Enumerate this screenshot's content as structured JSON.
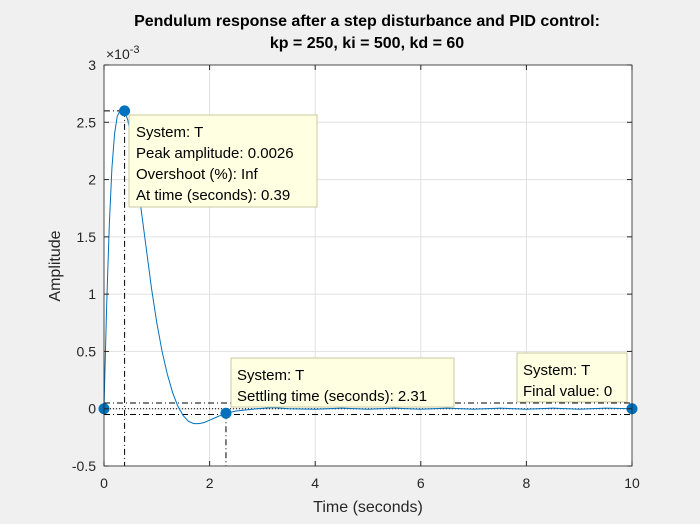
{
  "colors": {
    "figure_bg": "#f0f0f0",
    "axes_bg": "#ffffff",
    "line": "#0072bd",
    "grid": "#e0e0e0",
    "axis": "#262626",
    "tooltip_bg": "#ffffe1",
    "tooltip_border": "#c8c8a0"
  },
  "chart_data": {
    "type": "line",
    "title": "Pendulum response after a step disturbance and PID control:",
    "subtitle": "kp = 250, ki = 500, kd = 60",
    "xlabel": "Time (seconds)",
    "ylabel": "Amplitude",
    "exponent_label": "×10",
    "exponent_power": "-3",
    "xlim": [
      0,
      10
    ],
    "ylim": [
      -0.5,
      3
    ],
    "y_scale_note": "values in units of 1e-3",
    "x_ticks": [
      0,
      2,
      4,
      6,
      8,
      10
    ],
    "y_ticks": [
      -0.5,
      0,
      0.5,
      1,
      1.5,
      2,
      2.5,
      3
    ],
    "x_tick_labels": [
      "0",
      "2",
      "4",
      "6",
      "8",
      "10"
    ],
    "y_tick_labels": [
      "-0.5",
      "0",
      "0.5",
      "1",
      "1.5",
      "2",
      "2.5",
      "3"
    ],
    "grid": true,
    "series": [
      {
        "x": [
          0,
          0.05,
          0.1,
          0.15,
          0.2,
          0.25,
          0.3,
          0.35,
          0.39,
          0.45,
          0.5,
          0.6,
          0.7,
          0.8,
          0.9,
          1.0,
          1.1,
          1.2,
          1.3,
          1.4,
          1.5,
          1.6,
          1.7,
          1.8,
          1.9,
          2.0,
          2.1,
          2.2,
          2.31,
          2.5,
          2.7,
          2.9,
          3.2,
          3.5,
          4.0,
          4.5,
          5.0,
          5.5,
          6.0,
          6.5,
          7.0,
          7.5,
          8.0,
          8.5,
          9.0,
          9.5,
          10.0
        ],
        "y": [
          0,
          0.9,
          1.6,
          2.1,
          2.4,
          2.55,
          2.6,
          2.61,
          2.6,
          2.52,
          2.4,
          2.1,
          1.75,
          1.4,
          1.05,
          0.75,
          0.5,
          0.3,
          0.14,
          0.02,
          -0.06,
          -0.11,
          -0.13,
          -0.13,
          -0.12,
          -0.1,
          -0.08,
          -0.06,
          -0.04,
          -0.02,
          -0.01,
          0.0,
          0.01,
          0.0,
          -0.005,
          0.005,
          -0.005,
          0.005,
          -0.005,
          0.005,
          -0.005,
          0.005,
          -0.005,
          0.005,
          -0.005,
          0.005,
          0
        ]
      }
    ],
    "markers": [
      {
        "x": 0,
        "y": 0
      },
      {
        "x": 0.39,
        "y": 2.6
      },
      {
        "x": 2.31,
        "y": -0.04
      },
      {
        "x": 10,
        "y": 0
      }
    ],
    "tolerance_band": [
      -0.05,
      0.05
    ],
    "datatips": [
      {
        "anchor": "peak",
        "lines": [
          "System: T",
          "Peak amplitude: 0.0026",
          "Overshoot (%): Inf",
          "At time (seconds): 0.39"
        ]
      },
      {
        "anchor": "settling",
        "lines": [
          "System: T",
          "Settling time (seconds): 2.31"
        ]
      },
      {
        "anchor": "final",
        "lines": [
          "System: T",
          "Final value: 0"
        ]
      }
    ]
  }
}
